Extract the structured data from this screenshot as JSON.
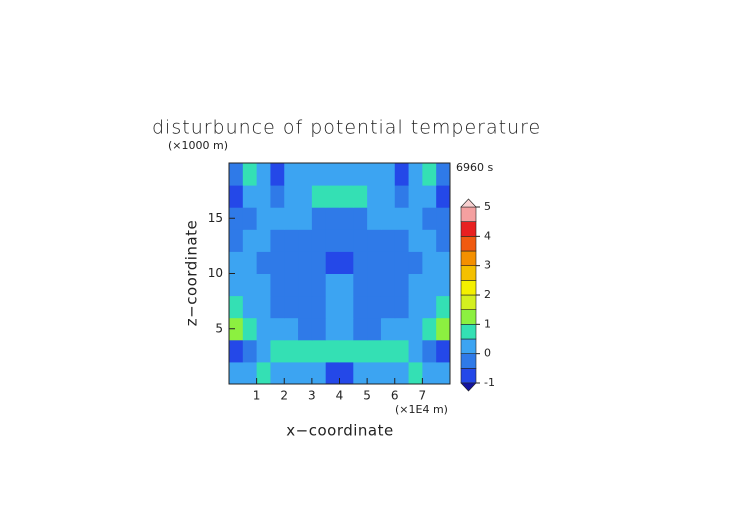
{
  "chart_data": {
    "type": "contour",
    "title": "disturbunce of potential temperature",
    "y_unit_label": "(×1000 m)",
    "x_unit_label": "(×1E4 m)",
    "time_label": "6960 s",
    "x_label": "x−coordinate",
    "y_label": "z−coordinate",
    "xlim": [
      0,
      8
    ],
    "ylim": [
      0,
      20
    ],
    "xticks": [
      1,
      2,
      3,
      4,
      5,
      6,
      7
    ],
    "yticks": [
      5,
      10,
      15
    ],
    "z": [
      [
        0.2,
        0.2,
        0.6,
        0.3,
        0.2,
        0.2,
        0.2,
        -0.6,
        -0.6,
        0.2,
        0.2,
        0.2,
        0.2,
        0.6,
        0.2,
        0.2
      ],
      [
        -0.7,
        -0.3,
        0.2,
        0.7,
        0.7,
        0.7,
        0.7,
        0.8,
        0.8,
        0.7,
        0.7,
        0.7,
        0.7,
        0.2,
        -0.3,
        -0.7
      ],
      [
        1.3,
        0.8,
        0.2,
        0.2,
        0.2,
        -0.2,
        -0.2,
        0.3,
        0.3,
        -0.2,
        -0.2,
        0.2,
        0.2,
        0.2,
        0.8,
        1.3
      ],
      [
        0.7,
        0.3,
        0.2,
        -0.2,
        -0.2,
        -0.2,
        -0.2,
        0.3,
        0.3,
        -0.2,
        -0.2,
        -0.2,
        -0.2,
        0.2,
        0.3,
        0.7
      ],
      [
        0.2,
        0.2,
        0.2,
        -0.2,
        -0.2,
        -0.2,
        -0.2,
        0.2,
        0.2,
        -0.2,
        -0.2,
        -0.2,
        -0.2,
        0.2,
        0.2,
        0.2
      ],
      [
        0.2,
        0.2,
        -0.2,
        -0.2,
        -0.2,
        -0.2,
        -0.2,
        -0.6,
        -0.6,
        -0.2,
        -0.2,
        -0.2,
        -0.2,
        -0.2,
        0.2,
        0.2
      ],
      [
        -0.2,
        0.2,
        0.2,
        -0.2,
        -0.2,
        -0.2,
        -0.2,
        -0.2,
        -0.2,
        -0.2,
        -0.2,
        -0.2,
        -0.2,
        0.2,
        0.2,
        -0.2
      ],
      [
        -0.2,
        -0.2,
        0.2,
        0.2,
        0.2,
        0.2,
        -0.2,
        -0.2,
        -0.2,
        -0.2,
        0.2,
        0.2,
        0.2,
        0.2,
        -0.2,
        -0.2
      ],
      [
        -0.6,
        0.2,
        0.2,
        -0.2,
        0.2,
        0.2,
        0.6,
        0.6,
        0.6,
        0.6,
        0.2,
        0.2,
        -0.2,
        0.2,
        0.2,
        -0.6
      ],
      [
        -0.2,
        0.6,
        0.2,
        -0.6,
        0.2,
        0.2,
        0.2,
        0.2,
        0.2,
        0.2,
        0.2,
        0.2,
        -0.6,
        0.2,
        0.6,
        -0.2
      ]
    ],
    "levels": [
      -1,
      -0.5,
      0,
      0.5,
      1,
      1.5,
      2,
      2.5,
      3,
      3.5,
      4,
      4.5,
      5
    ],
    "level_colors": [
      "#2448e8",
      "#2f7ae8",
      "#3ca4f2",
      "#34e0b4",
      "#8cf040",
      "#d4f020",
      "#f4f000",
      "#f4c000",
      "#f49000",
      "#f05a10",
      "#e82020",
      "#f4a0a0"
    ],
    "under_color": "#1414a0",
    "over_color": "#f8d0d0",
    "colorbar_ticks": [
      -1,
      0,
      1,
      2,
      3,
      4,
      5
    ]
  }
}
